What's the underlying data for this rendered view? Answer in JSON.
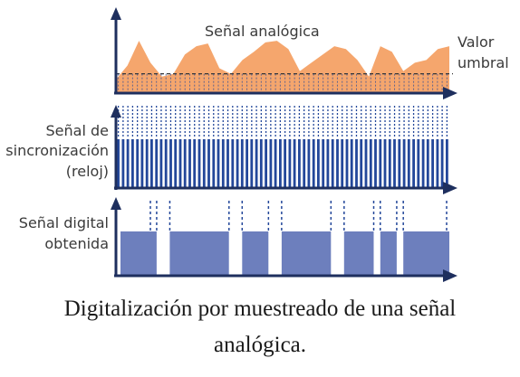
{
  "labels": {
    "analog": "Señal analógica",
    "threshold_1": "Valor",
    "threshold_2": "umbral",
    "sync_1": "Señal de",
    "sync_2": "sincronización",
    "sync_3": "(reloj)",
    "digital_1": "Señal digital",
    "digital_2": "obtenida"
  },
  "caption": {
    "line1": "Digitalización por muestreado de una señal",
    "line2": "analógica."
  },
  "colors": {
    "analog_fill": "#f5a66d",
    "pulse": "#23479a",
    "digital_fill": "#6d7fbd",
    "axis": "#1e2f5e",
    "dashed": "#23479a"
  },
  "signal": {
    "analog_profile": [
      0.25,
      0.5,
      0.95,
      0.55,
      0.3,
      0.35,
      0.7,
      0.85,
      0.9,
      0.45,
      0.35,
      0.6,
      0.75,
      0.92,
      0.95,
      0.8,
      0.4,
      0.55,
      0.7,
      0.85,
      0.8,
      0.6,
      0.3,
      0.85,
      0.75,
      0.4,
      0.55,
      0.6,
      0.8,
      0.85
    ],
    "threshold_level": 0.35,
    "digital_high_segments": [
      [
        0.0,
        0.11
      ],
      [
        0.15,
        0.33
      ],
      [
        0.37,
        0.45
      ],
      [
        0.49,
        0.64
      ],
      [
        0.68,
        0.77
      ],
      [
        0.79,
        0.84
      ],
      [
        0.86,
        1.0
      ]
    ],
    "clock_pulse_count": 70
  }
}
